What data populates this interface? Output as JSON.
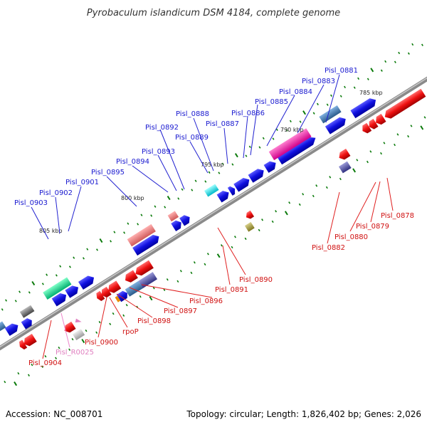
{
  "title": "Pyrobaculum islandicum DSM 4184, complete genome",
  "footer": {
    "accession": "Accession: NC_008701",
    "summary": "Topology: circular; Length: 1,826,402 bp; Genes: 2,026"
  },
  "kbp_marks": [
    "785 kbp",
    "790 kbp",
    "795 kbp",
    "800 kbp",
    "805 kbp"
  ],
  "forward_strand_labels": [
    "Pisl_0881",
    "Pisl_0883",
    "Pisl_0884",
    "Pisl_0885",
    "Pisl_0886",
    "Pisl_0887",
    "Pisl_0888",
    "Pisl_0889",
    "Pisl_0892",
    "Pisl_0893",
    "Pisl_0894",
    "Pisl_0895",
    "Pisl_0901",
    "Pisl_0902",
    "Pisl_0903"
  ],
  "reverse_strand_labels": [
    "Pisl_0878",
    "Pisl_0879",
    "Pisl_0880",
    "Pisl_0882",
    "Pisl_0890",
    "Pisl_0891",
    "Pisl_0896",
    "Pisl_0897",
    "Pisl_0898",
    "rpoP",
    "Pisl_0900",
    "Pisl_R0025",
    "Pisl_0904"
  ],
  "colors": {
    "forward": "#1f1fb4",
    "reverse": "#d01010",
    "rna": "#e080c0",
    "backbone": "#888888",
    "tick": "#0a7a0a"
  }
}
